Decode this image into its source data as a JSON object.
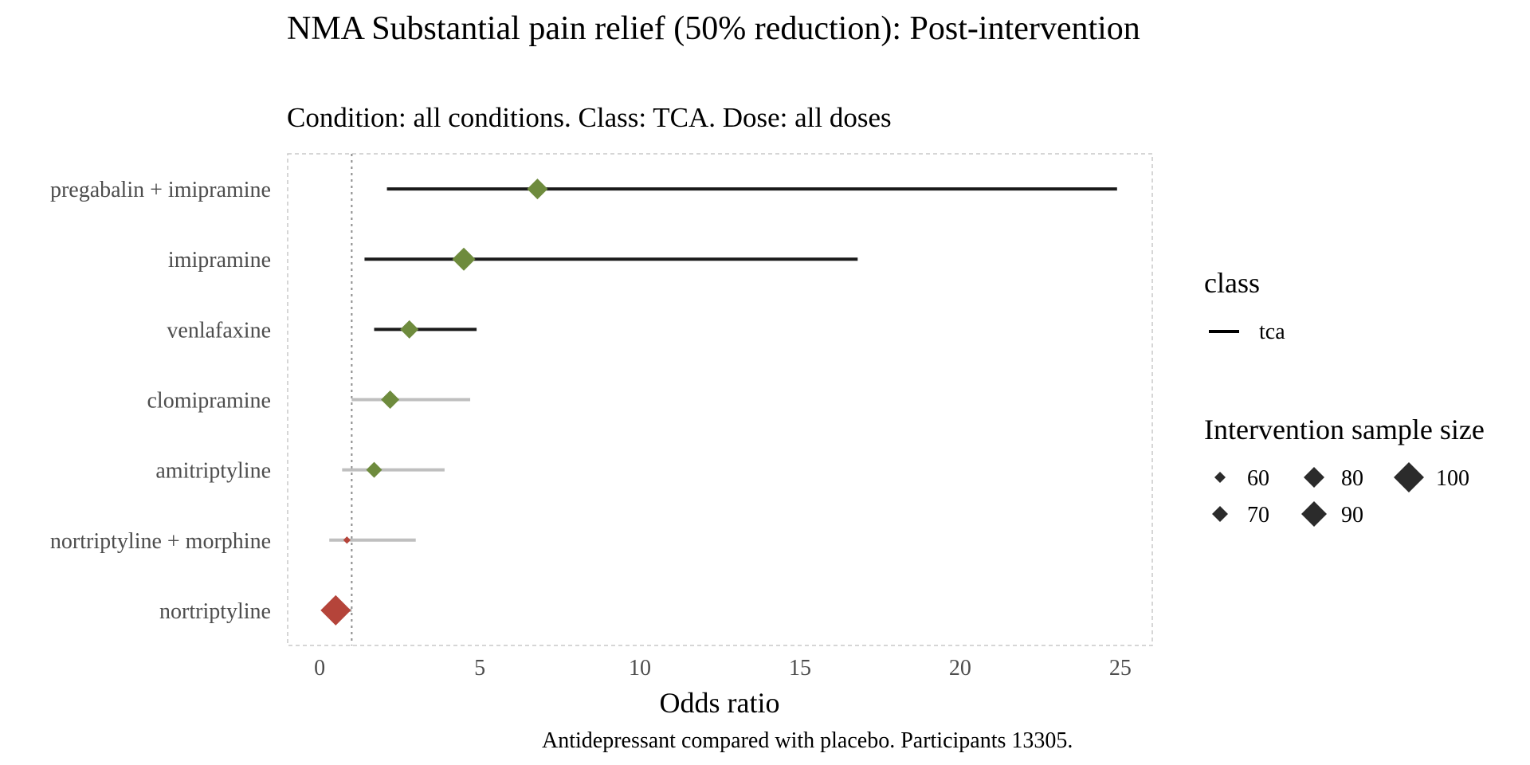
{
  "chart_data": {
    "type": "forest",
    "title": "NMA Substantial pain relief (50% reduction): Post-intervention",
    "subtitle": "Condition: all conditions. Class: TCA. Dose: all doses",
    "xlabel": "Odds ratio",
    "caption": "Antidepressant compared with placebo. Participants 13305.",
    "xlim": [
      -1,
      26
    ],
    "xticks": [
      0,
      5,
      10,
      15,
      20,
      25
    ],
    "reference_line": 1,
    "grid": false,
    "rows": [
      {
        "label": "pregabalin + imipramine",
        "estimate": 6.8,
        "lower": 2.1,
        "upper": 24.9,
        "sample_size": 80,
        "significant": true,
        "favours": "green"
      },
      {
        "label": "imipramine",
        "estimate": 4.5,
        "lower": 1.4,
        "upper": 16.8,
        "sample_size": 85,
        "significant": true,
        "favours": "green"
      },
      {
        "label": "venlafaxine",
        "estimate": 2.8,
        "lower": 1.7,
        "upper": 4.9,
        "sample_size": 75,
        "significant": true,
        "favours": "green"
      },
      {
        "label": "clomipramine",
        "estimate": 2.2,
        "lower": 1.0,
        "upper": 4.7,
        "sample_size": 75,
        "significant": false,
        "favours": "green"
      },
      {
        "label": "amitriptyline",
        "estimate": 1.7,
        "lower": 0.7,
        "upper": 3.9,
        "sample_size": 70,
        "significant": false,
        "favours": "green"
      },
      {
        "label": "nortriptyline + morphine",
        "estimate": 0.85,
        "lower": 0.3,
        "upper": 3.0,
        "sample_size": 52,
        "significant": false,
        "favours": "red"
      },
      {
        "label": "nortriptyline",
        "estimate": 0.5,
        "lower": 0.2,
        "upper": 1.0,
        "sample_size": 100,
        "significant": false,
        "favours": "red"
      }
    ],
    "colors": {
      "green": "#6e8b3d",
      "red": "#b5443a",
      "ci_significant": "#1a1a1a",
      "ci_nonsignificant": "#bfbfbf",
      "reference_line": "#8c8c8c",
      "legend_shape": "#2b2b2b"
    },
    "legend": {
      "placement": "right",
      "class_title": "class",
      "class_items": [
        {
          "label": "tca"
        }
      ],
      "size_title": "Intervention sample size",
      "size_items": [
        {
          "label": "60",
          "value": 60
        },
        {
          "label": "70",
          "value": 70
        },
        {
          "label": "80",
          "value": 80
        },
        {
          "label": "90",
          "value": 90
        },
        {
          "label": "100",
          "value": 100
        }
      ]
    }
  }
}
